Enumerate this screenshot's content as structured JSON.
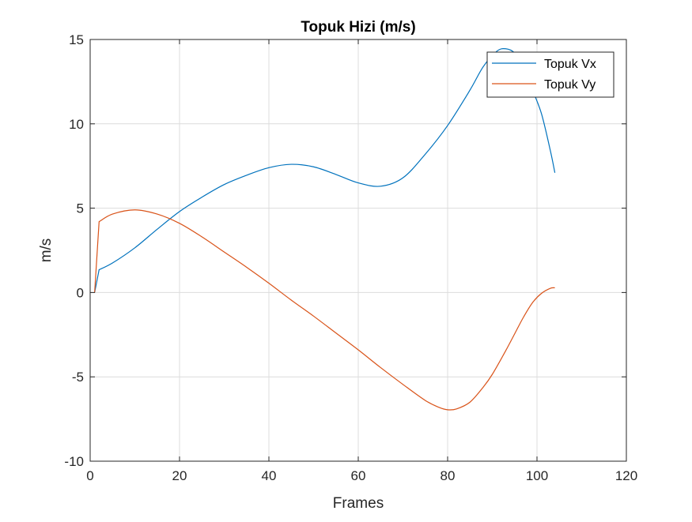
{
  "chart_data": {
    "type": "line",
    "title": "Topuk Hizi (m/s)",
    "xlabel": "Frames",
    "ylabel": "m/s",
    "xlim": [
      0,
      120
    ],
    "ylim": [
      -10,
      15
    ],
    "xticks": [
      0,
      20,
      40,
      60,
      80,
      100,
      120
    ],
    "yticks": [
      -10,
      -5,
      0,
      5,
      10,
      15
    ],
    "grid": true,
    "legend_position": "top-right",
    "series": [
      {
        "name": "Topuk Vx",
        "color": "#0072BD",
        "x": [
          1,
          2,
          5,
          10,
          15,
          20,
          25,
          30,
          35,
          40,
          45,
          50,
          55,
          60,
          65,
          70,
          75,
          80,
          85,
          88,
          91,
          93,
          95,
          97,
          99,
          101,
          103,
          104
        ],
        "y": [
          0,
          1.35,
          1.75,
          2.65,
          3.75,
          4.8,
          5.65,
          6.4,
          6.95,
          7.4,
          7.6,
          7.45,
          7.0,
          6.5,
          6.3,
          6.8,
          8.2,
          9.9,
          12.0,
          13.4,
          14.3,
          14.45,
          14.2,
          13.4,
          12.0,
          10.6,
          8.4,
          7.1
        ]
      },
      {
        "name": "Topuk Vy",
        "color": "#D95319",
        "x": [
          1,
          2,
          5,
          10,
          15,
          20,
          25,
          30,
          35,
          40,
          45,
          50,
          55,
          60,
          65,
          70,
          75,
          78,
          80,
          82,
          85,
          88,
          90,
          93,
          95,
          97,
          99,
          101,
          103,
          104
        ],
        "y": [
          0,
          4.2,
          4.65,
          4.9,
          4.65,
          4.1,
          3.3,
          2.4,
          1.5,
          0.55,
          -0.45,
          -1.4,
          -2.4,
          -3.4,
          -4.45,
          -5.45,
          -6.4,
          -6.8,
          -6.95,
          -6.9,
          -6.5,
          -5.6,
          -4.85,
          -3.45,
          -2.45,
          -1.45,
          -0.6,
          -0.05,
          0.25,
          0.28
        ]
      }
    ]
  }
}
